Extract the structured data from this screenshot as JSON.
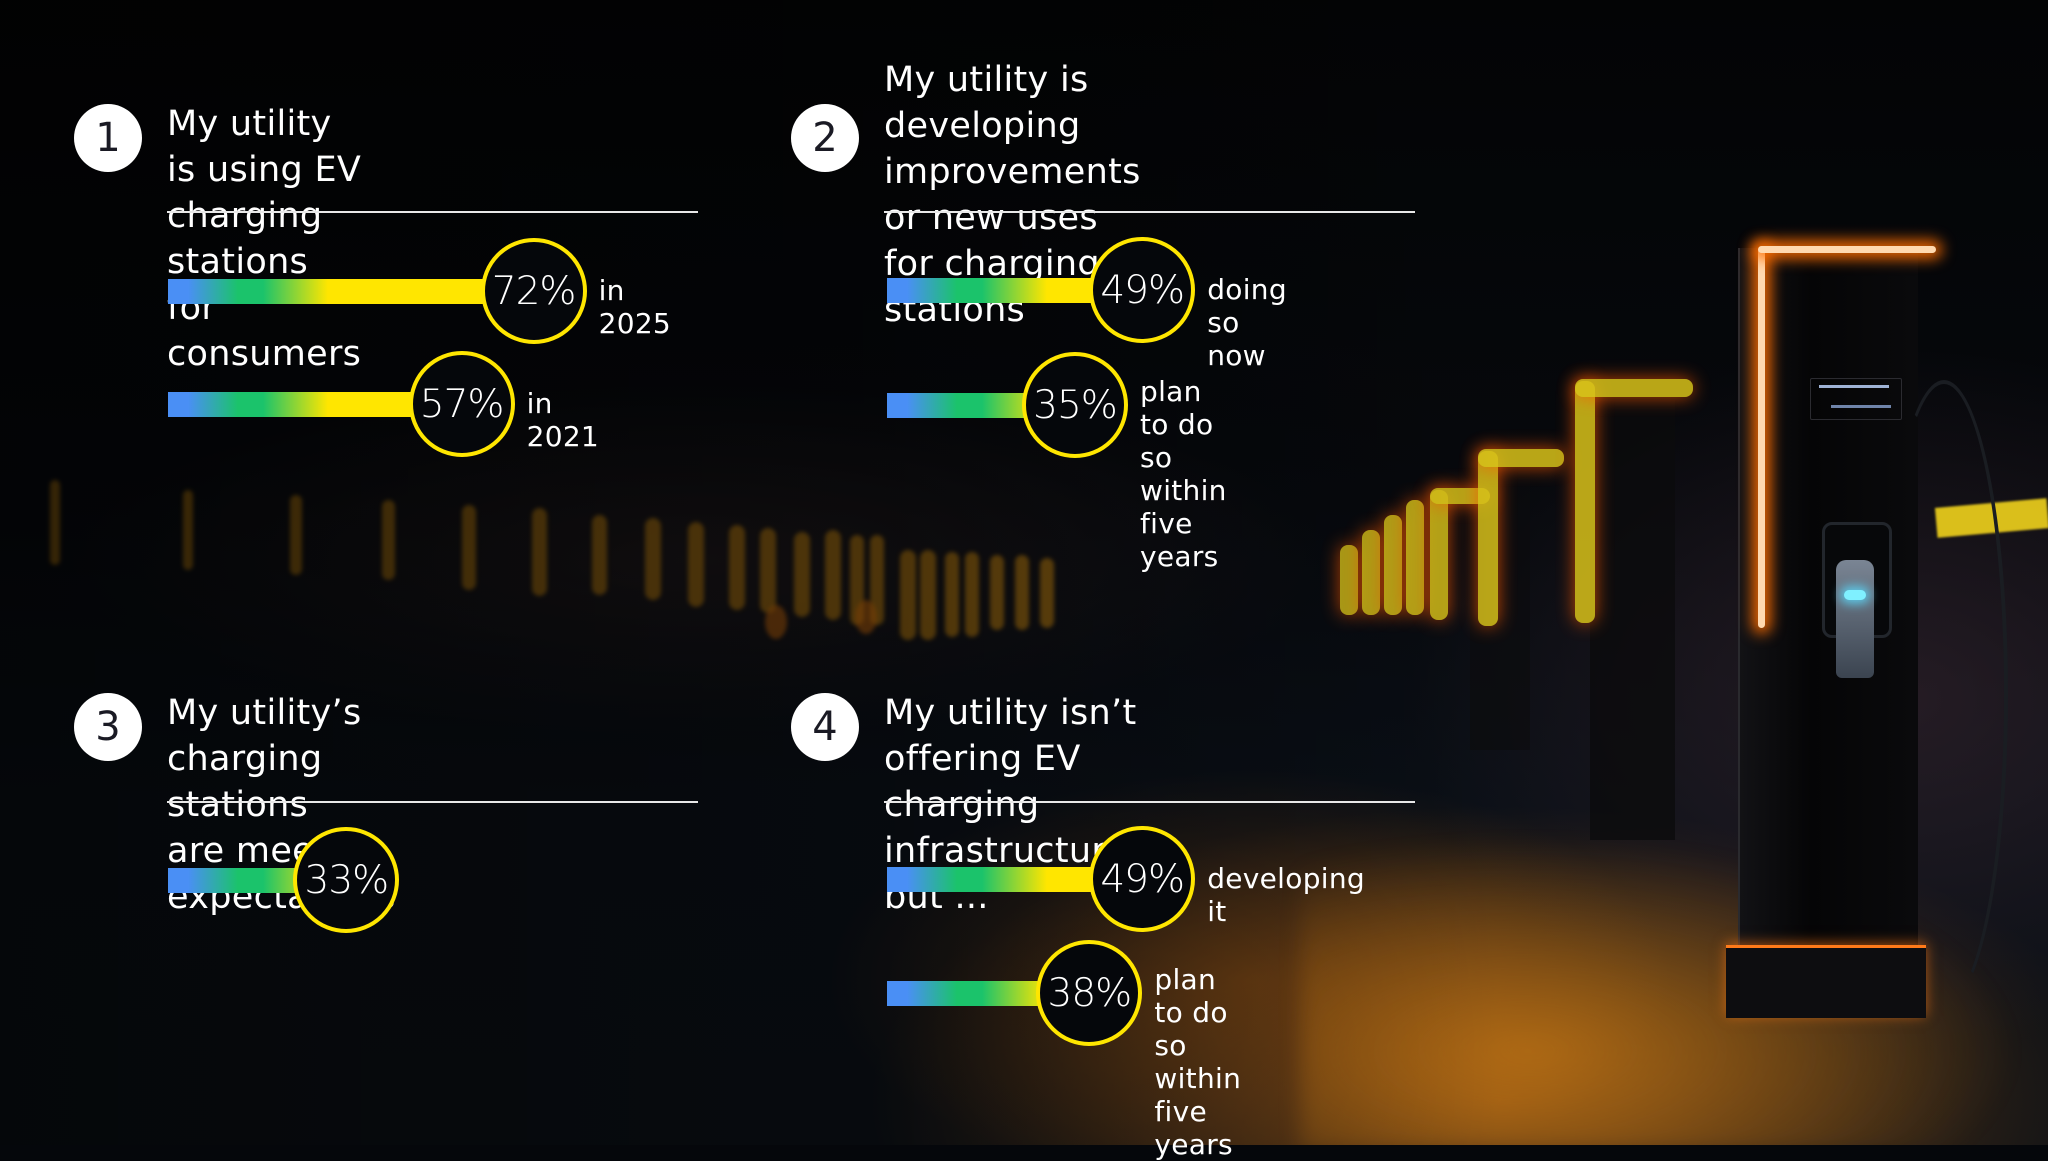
{
  "colors": {
    "accent_yellow": "#ffe600",
    "gradient_blue": "#4a8ff5",
    "gradient_green": "#1bc36b",
    "background": "#05070b",
    "text": "#ffffff"
  },
  "sections": [
    {
      "number": "1",
      "title": "My utility is using EV charging\nstations for consumers",
      "items": [
        {
          "value": 72,
          "value_label": "72%",
          "label": "in 2025"
        },
        {
          "value": 57,
          "value_label": "57%",
          "label": "in 2021"
        }
      ]
    },
    {
      "number": "2",
      "title": "My utility is developing\nimprovements or new uses\nfor charging stations",
      "items": [
        {
          "value": 49,
          "value_label": "49%",
          "label": "doing so now"
        },
        {
          "value": 35,
          "value_label": "35%",
          "label": "plan to do so\nwithin five years"
        }
      ]
    },
    {
      "number": "3",
      "title": "My utility’s charging stations\nare meeting expectations",
      "items": [
        {
          "value": 33,
          "value_label": "33%",
          "label": ""
        }
      ]
    },
    {
      "number": "4",
      "title": "My utility isn’t offering EV\ncharging infrastructure, but ...",
      "items": [
        {
          "value": 49,
          "value_label": "49%",
          "label": "developing it"
        },
        {
          "value": 38,
          "value_label": "38%",
          "label": "plan to do so\nwithin five years"
        }
      ]
    }
  ],
  "chart_data": {
    "type": "bar",
    "title": "",
    "xlabel": "",
    "ylabel": "",
    "unit": "%",
    "orientation": "horizontal",
    "groups": [
      {
        "title": "My utility is using EV charging stations for consumers",
        "categories": [
          "in 2025",
          "in 2021"
        ],
        "values": [
          72,
          57
        ]
      },
      {
        "title": "My utility is developing improvements or new uses for charging stations",
        "categories": [
          "doing so now",
          "plan to do so within five years"
        ],
        "values": [
          49,
          35
        ]
      },
      {
        "title": "My utility’s charging stations are meeting expectations",
        "categories": [
          ""
        ],
        "values": [
          33
        ]
      },
      {
        "title": "My utility isn’t offering EV charging infrastructure, but ...",
        "categories": [
          "developing it",
          "plan to do so within five years"
        ],
        "values": [
          49,
          38
        ]
      }
    ],
    "xlim": [
      0,
      100
    ],
    "grid": false,
    "legend": "none"
  }
}
